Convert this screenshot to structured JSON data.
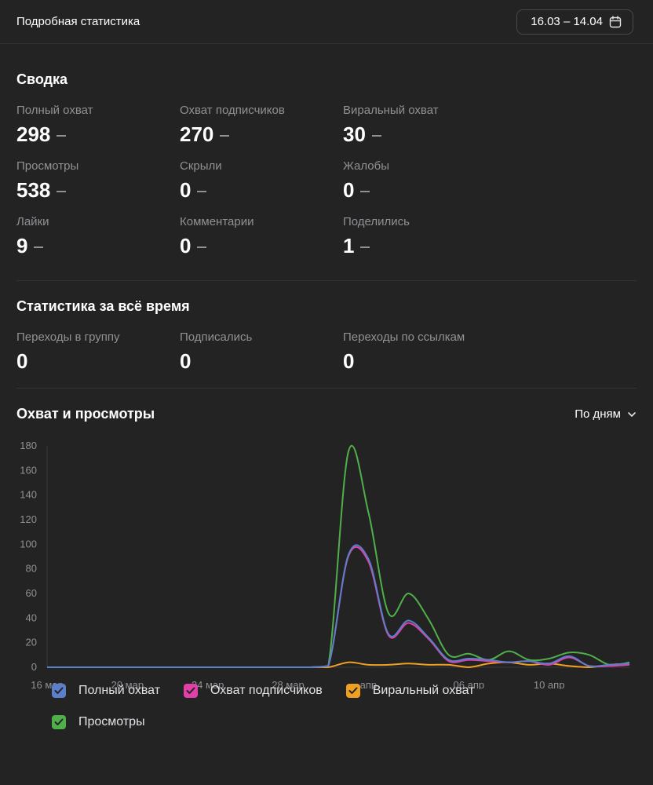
{
  "header": {
    "title": "Подробная статистика",
    "date_range": "16.03 – 14.04"
  },
  "summary": {
    "title": "Сводка",
    "stats": [
      {
        "label": "Полный охват",
        "value": "298"
      },
      {
        "label": "Охват подписчиков",
        "value": "270"
      },
      {
        "label": "Виральный охват",
        "value": "30"
      },
      {
        "label": "Просмотры",
        "value": "538"
      },
      {
        "label": "Скрыли",
        "value": "0"
      },
      {
        "label": "Жалобы",
        "value": "0"
      },
      {
        "label": "Лайки",
        "value": "9"
      },
      {
        "label": "Комментарии",
        "value": "0"
      },
      {
        "label": "Поделились",
        "value": "1"
      }
    ]
  },
  "alltime": {
    "title": "Статистика за всё время",
    "stats": [
      {
        "label": "Переходы в группу",
        "value": "0"
      },
      {
        "label": "Подписались",
        "value": "0"
      },
      {
        "label": "Переходы по ссылкам",
        "value": "0"
      }
    ]
  },
  "chart_section": {
    "title": "Охват и просмотры",
    "period": "По дням"
  },
  "legend": [
    {
      "label": "Полный охват",
      "color": "#5b7fc8"
    },
    {
      "label": "Охват подписчиков",
      "color": "#e040a8"
    },
    {
      "label": "Виральный охват",
      "color": "#f0a020"
    },
    {
      "label": "Просмотры",
      "color": "#4fb04a"
    }
  ],
  "chart_data": {
    "type": "line",
    "x_ticks": [
      "16 мар",
      "20 мар",
      "24 мар",
      "28 мар",
      "апр",
      "06 апр",
      "10 апр"
    ],
    "y_ticks": [
      0,
      20,
      40,
      60,
      80,
      100,
      120,
      140,
      160,
      180
    ],
    "ylim": [
      0,
      180
    ],
    "x_day_range": [
      0,
      29
    ],
    "x_tick_days": [
      0,
      4,
      8,
      12,
      16,
      21,
      25
    ],
    "x_day_values": [
      0,
      1,
      2,
      3,
      4,
      5,
      6,
      7,
      8,
      9,
      10,
      11,
      12,
      13,
      14,
      15,
      16,
      17,
      18,
      19,
      20,
      21,
      22,
      23,
      24,
      25,
      26,
      27,
      28,
      29
    ],
    "grid": false,
    "series": [
      {
        "name": "Полный охват",
        "color": "#5b7fc8",
        "values": [
          0,
          0,
          0,
          0,
          0,
          0,
          0,
          0,
          0,
          0,
          0,
          0,
          0,
          0,
          1,
          91,
          88,
          27,
          38,
          24,
          6,
          7,
          6,
          4,
          5,
          3,
          9,
          1,
          2,
          3
        ]
      },
      {
        "name": "Охват подписчиков",
        "color": "#e040a8",
        "values": [
          0,
          0,
          0,
          0,
          0,
          0,
          0,
          0,
          0,
          0,
          0,
          0,
          0,
          0,
          1,
          90,
          86,
          26,
          36,
          23,
          5,
          6,
          5,
          4,
          5,
          2,
          8,
          1,
          1,
          2
        ]
      },
      {
        "name": "Виральный охват",
        "color": "#f0a020",
        "values": [
          0,
          0,
          0,
          0,
          0,
          0,
          0,
          0,
          0,
          0,
          0,
          0,
          0,
          0,
          0,
          4,
          2,
          2,
          3,
          2,
          2,
          0,
          3,
          4,
          2,
          3,
          1,
          0,
          2,
          3
        ]
      },
      {
        "name": "Просмотры",
        "color": "#4fb04a",
        "values": [
          0,
          0,
          0,
          0,
          0,
          0,
          0,
          0,
          0,
          0,
          0,
          0,
          0,
          0,
          1,
          175,
          126,
          44,
          60,
          39,
          10,
          11,
          6,
          13,
          6,
          7,
          12,
          10,
          2,
          4
        ]
      }
    ]
  }
}
